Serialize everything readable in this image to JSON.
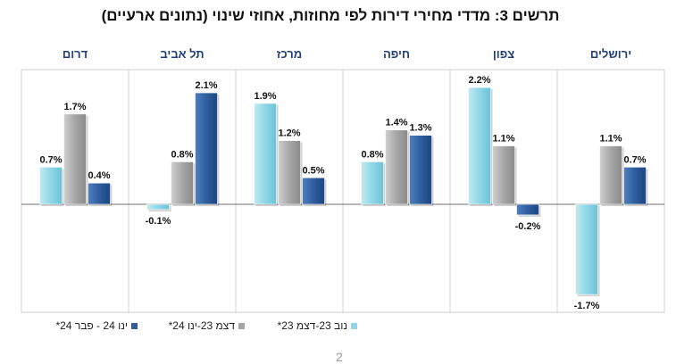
{
  "chart_data": {
    "type": "bar",
    "title": "תרשים 3: מדדי מחירי דירות לפי מחוזות, אחוזי שינוי (נתונים ארעיים)",
    "categories": [
      "ירושלים",
      "צפון",
      "חיפה",
      "מרכז",
      "תל אביב",
      "דרום"
    ],
    "series": [
      {
        "name": "נוב 23-דצמ 23*",
        "color": "#8fd6e6",
        "values": [
          -1.7,
          2.2,
          0.8,
          1.9,
          -0.1,
          0.7
        ]
      },
      {
        "name": "דצמ 23-ינו 24*",
        "color": "#a6a6a6",
        "values": [
          1.1,
          1.1,
          1.4,
          1.2,
          0.8,
          1.7
        ]
      },
      {
        "name": "ינו 24 - פבר 24*",
        "color": "#2f5d9e",
        "values": [
          0.7,
          -0.2,
          1.3,
          0.5,
          2.1,
          0.4
        ]
      }
    ],
    "value_labels": {
      "series_0": [
        "-1.7%",
        "2.2%",
        "0.8%",
        "1.9%",
        "-0.1%",
        "0.7%"
      ],
      "series_1": [
        "1.1%",
        "1.1%",
        "1.4%",
        "1.2%",
        "0.8%",
        "1.7%"
      ],
      "series_2": [
        "0.7%",
        "-0.2%",
        "1.3%",
        "0.5%",
        "2.1%",
        "0.4%"
      ]
    },
    "ylim": [
      -2.0,
      2.4
    ],
    "category_order": "right-to-left",
    "legend_position": "bottom",
    "grid": false
  },
  "page": {
    "number": "2"
  }
}
